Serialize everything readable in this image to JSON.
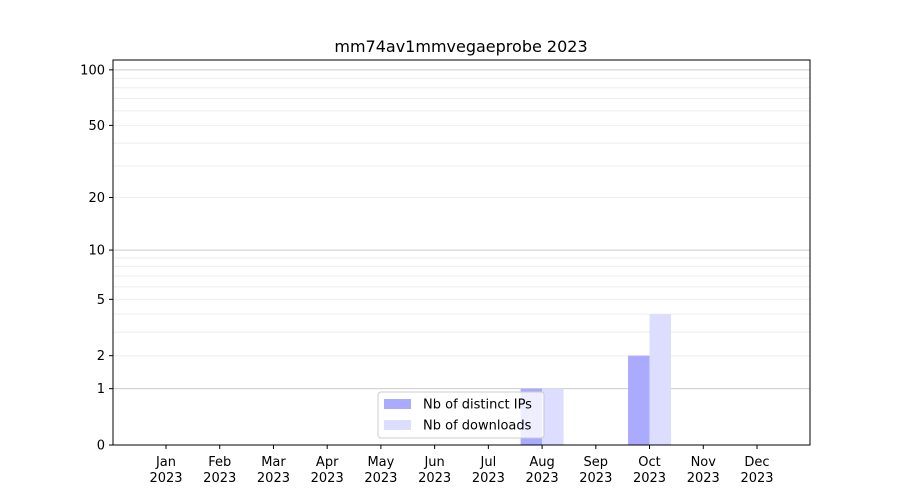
{
  "chart_data": {
    "type": "bar",
    "title": "mm74av1mmvegaeprobe 2023",
    "categories": [
      "Jan\n2023",
      "Feb\n2023",
      "Mar\n2023",
      "Apr\n2023",
      "May\n2023",
      "Jun\n2023",
      "Jul\n2023",
      "Aug\n2023",
      "Sep\n2023",
      "Oct\n2023",
      "Nov\n2023",
      "Dec\n2023"
    ],
    "series": [
      {
        "name": "Nb of distinct IPs",
        "color": "#aaaaff",
        "values": [
          0,
          0,
          0,
          0,
          0,
          0,
          0,
          1,
          0,
          2,
          0,
          0
        ]
      },
      {
        "name": "Nb of downloads",
        "color": "#ddddff",
        "values": [
          0,
          0,
          0,
          0,
          0,
          0,
          0,
          1,
          0,
          4,
          0,
          0
        ]
      }
    ],
    "y_scale": "symlog (log10(1+y))",
    "y_ticks": [
      0,
      1,
      2,
      5,
      10,
      20,
      50,
      100
    ],
    "ylim": [
      0,
      113
    ],
    "grid": true,
    "legend": "lower-center"
  }
}
